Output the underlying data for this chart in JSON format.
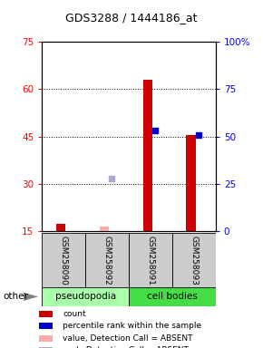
{
  "title": "GDS3288 / 1444186_at",
  "samples": [
    "GSM258090",
    "GSM258092",
    "GSM258091",
    "GSM258093"
  ],
  "ylim_left": [
    15,
    75
  ],
  "ylim_right": [
    0,
    100
  ],
  "yticks_left": [
    15,
    30,
    45,
    60,
    75
  ],
  "yticks_right": [
    0,
    25,
    50,
    75,
    100
  ],
  "ytick_labels_left": [
    "15",
    "30",
    "45",
    "60",
    "75"
  ],
  "ytick_labels_right": [
    "0",
    "25",
    "50",
    "75",
    "100%"
  ],
  "count_values": [
    17.5,
    null,
    63.0,
    45.5
  ],
  "rank_pct_values": [
    null,
    null,
    53.0,
    51.0
  ],
  "absent_value_values": [
    null,
    16.5,
    null,
    null
  ],
  "absent_rank_pct_values": [
    null,
    28.0,
    null,
    null
  ],
  "count_color": "#cc0000",
  "rank_color": "#0000cc",
  "absent_value_color": "#ffaaaa",
  "absent_rank_color": "#aaaacc",
  "sample_bg_color": "#cccccc",
  "group1_color": "#aaffaa",
  "group2_color": "#44dd44",
  "legend_items": [
    {
      "label": "count",
      "color": "#cc0000"
    },
    {
      "label": "percentile rank within the sample",
      "color": "#0000cc"
    },
    {
      "label": "value, Detection Call = ABSENT",
      "color": "#ffaaaa"
    },
    {
      "label": "rank, Detection Call = ABSENT",
      "color": "#aaaacc"
    }
  ]
}
